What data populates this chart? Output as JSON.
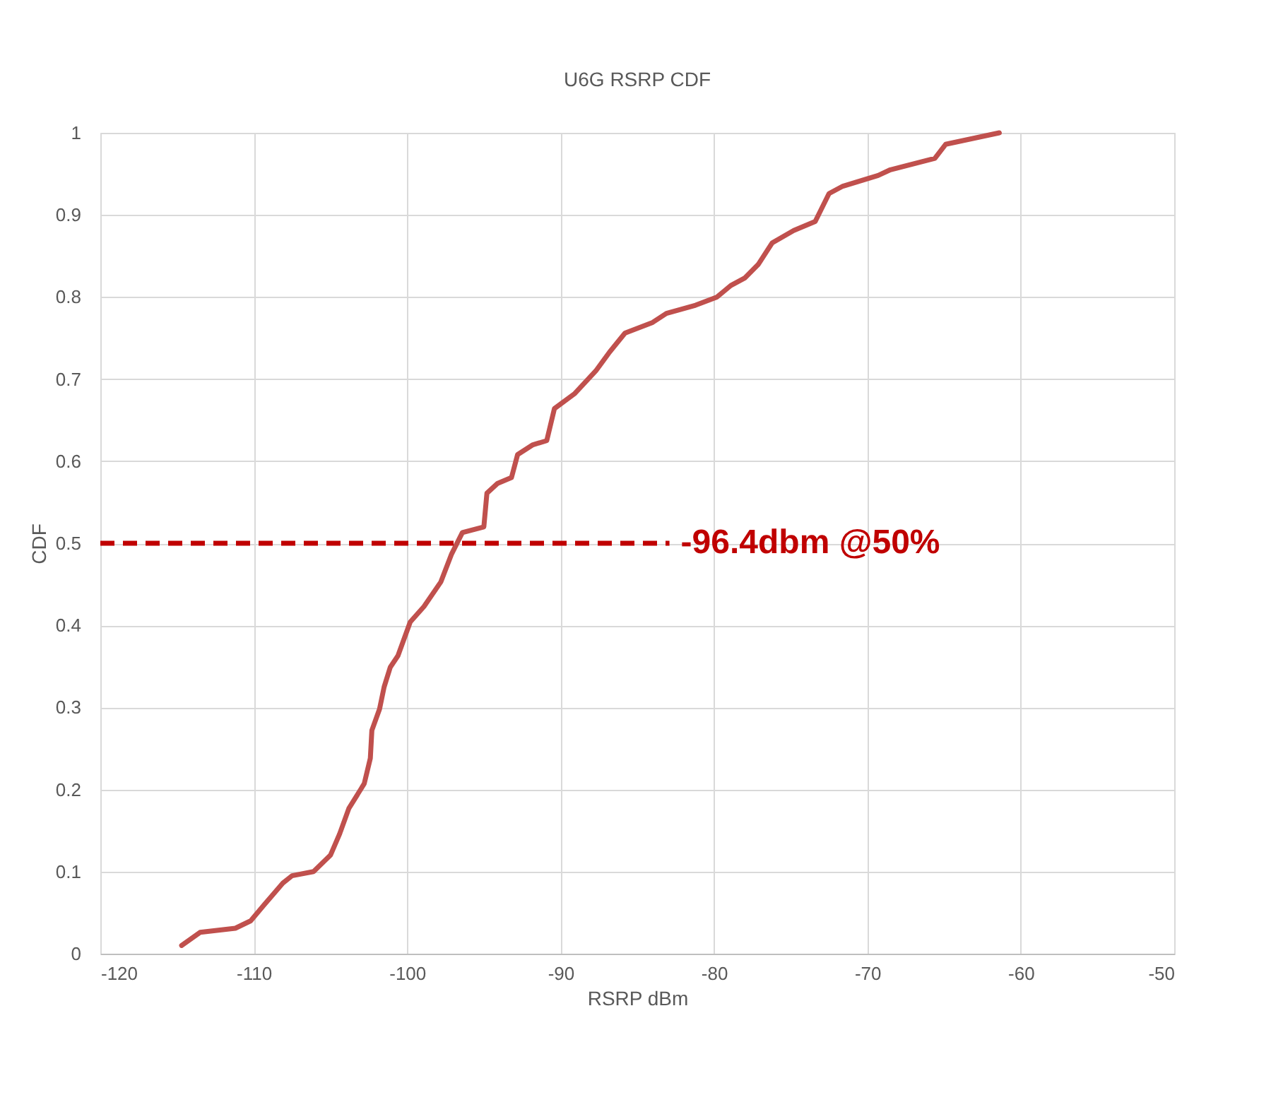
{
  "chart_data": {
    "type": "line",
    "title": "U6G RSRP CDF",
    "xlabel": "RSRP dBm",
    "ylabel": "CDF",
    "x": [
      -114.7,
      -113.5,
      -111.2,
      -110.2,
      -109.3,
      -108.1,
      -107.5,
      -106.1,
      -105.0,
      -104.4,
      -103.8,
      -102.8,
      -102.4,
      -102.3,
      -101.8,
      -101.5,
      -101.1,
      -100.6,
      -99.8,
      -98.9,
      -97.8,
      -97.1,
      -96.4,
      -95.0,
      -94.8,
      -94.1,
      -93.2,
      -92.8,
      -91.8,
      -90.9,
      -90.4,
      -89.1,
      -87.7,
      -86.8,
      -85.8,
      -84.0,
      -83.1,
      -81.2,
      -79.8,
      -78.9,
      -78.0,
      -77.1,
      -76.2,
      -74.8,
      -73.4,
      -72.5,
      -71.6,
      -69.3,
      -68.5,
      -65.6,
      -64.9,
      -61.4
    ],
    "series": [
      {
        "color": "#c0504d",
        "values": [
          0.01,
          0.026,
          0.031,
          0.04,
          0.06,
          0.086,
          0.095,
          0.1,
          0.12,
          0.146,
          0.177,
          0.207,
          0.238,
          0.272,
          0.298,
          0.325,
          0.349,
          0.363,
          0.404,
          0.423,
          0.453,
          0.487,
          0.513,
          0.52,
          0.561,
          0.573,
          0.58,
          0.608,
          0.62,
          0.625,
          0.664,
          0.682,
          0.71,
          0.733,
          0.756,
          0.769,
          0.78,
          0.79,
          0.8,
          0.814,
          0.823,
          0.84,
          0.866,
          0.881,
          0.892,
          0.926,
          0.935,
          0.948,
          0.955,
          0.969,
          0.986,
          1.0
        ]
      }
    ],
    "xlim": [
      -120,
      -50
    ],
    "xticks": [
      -120,
      -110,
      -100,
      -90,
      -80,
      -70,
      -60,
      -50
    ],
    "ylim": [
      0,
      1
    ],
    "yticks": [
      0,
      0.1,
      0.2,
      0.3,
      0.4,
      0.5,
      0.6,
      0.7,
      0.8,
      0.9,
      1
    ],
    "ref_lines": [
      {
        "axis": "y",
        "value": 0.5,
        "label": "-96.4dbm @50%",
        "color": "#c00000",
        "line_style": "dashed"
      }
    ],
    "grid": true,
    "marker": "none",
    "line_style": "solid"
  }
}
